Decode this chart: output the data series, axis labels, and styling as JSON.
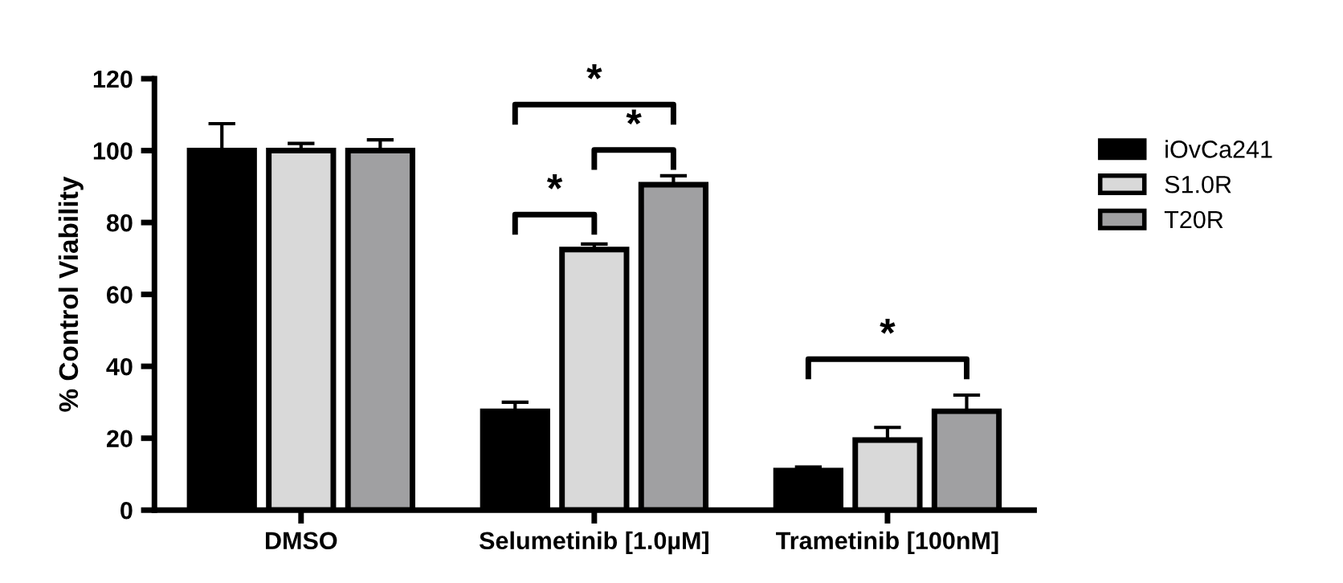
{
  "chart_data": {
    "type": "bar",
    "ylabel": "% Control Viability",
    "categories": [
      "DMSO",
      "Selumetinib [1.0µM]",
      "Trametinib [100nM]"
    ],
    "series": [
      {
        "name": "iOvCa241",
        "color": "#000000",
        "values": [
          100,
          27.5,
          11
        ],
        "errors": [
          [
            100,
            107.5
          ],
          [
            27.5,
            30
          ],
          [
            11,
            12
          ]
        ]
      },
      {
        "name": "S1.0R",
        "color": "#d9d9d9",
        "values": [
          100,
          72.5,
          19.5
        ],
        "errors": [
          [
            100,
            102
          ],
          [
            72.5,
            74
          ],
          [
            19.5,
            23
          ]
        ]
      },
      {
        "name": "T20R",
        "color": "#a0a0a2",
        "values": [
          100,
          90.5,
          27.5
        ],
        "errors": [
          [
            100,
            103
          ],
          [
            90.5,
            93
          ],
          [
            27.5,
            32
          ]
        ]
      }
    ],
    "ylim": [
      0,
      120
    ],
    "yticks": [
      0,
      20,
      40,
      60,
      80,
      100,
      120
    ],
    "grid": false,
    "legend": "right",
    "annotations": [
      "*",
      "*",
      "*",
      "*"
    ]
  }
}
